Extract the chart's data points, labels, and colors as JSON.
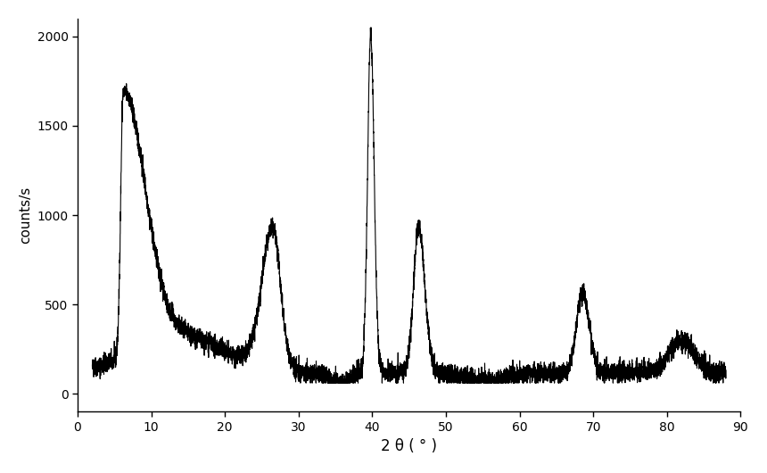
{
  "xlabel": "2 θ ( ° )",
  "ylabel": "counts/s",
  "xlim": [
    0,
    90
  ],
  "ylim": [
    -100,
    2100
  ],
  "xticks": [
    0,
    10,
    20,
    30,
    40,
    50,
    60,
    70,
    80,
    90
  ],
  "yticks": [
    0,
    500,
    1000,
    1500,
    2000
  ],
  "background_color": "#ffffff",
  "line_color": "#000000",
  "line_width": 0.8,
  "noise_amplitude": 28,
  "noise_seed": 42
}
